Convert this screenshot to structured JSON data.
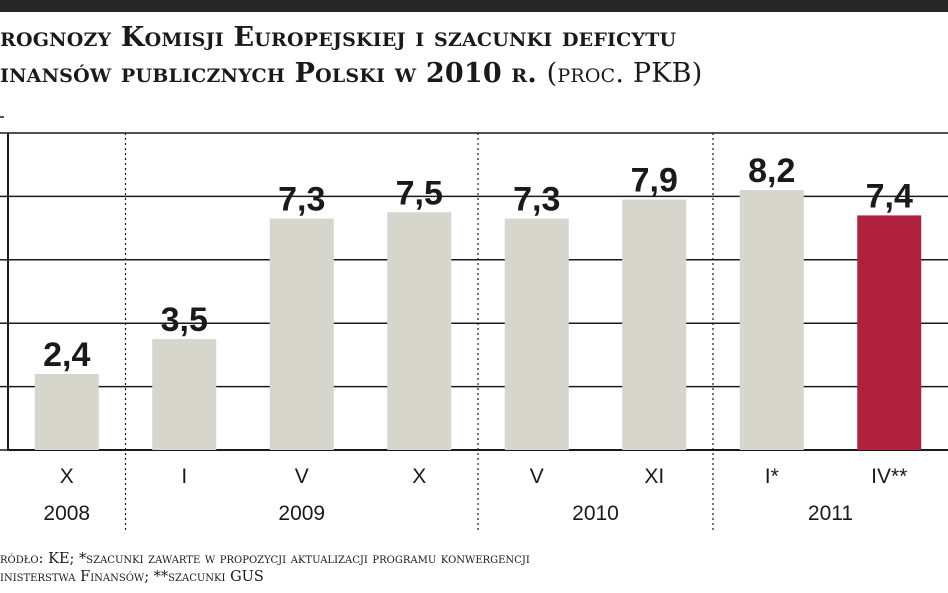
{
  "title": {
    "line1": "rognozy Komisji Europejskiej i szacunki deficytu",
    "line2": "inansów publicznych Polski w 2010 r.",
    "unit": "(proc. PKB)"
  },
  "source": {
    "line1": "ródło: KE; *szacunki zawarte w propozycji aktualizacji programu konwergencji",
    "line2": "inisterstwa Finansów; **szacunki GUS"
  },
  "colors": {
    "bar": "#d7d6cc",
    "highlight": "#b0213f",
    "grid": "#1a1a1a",
    "text": "#1a1a1a"
  },
  "chart_data": {
    "type": "bar",
    "categories": [
      "X",
      "I",
      "V",
      "X",
      "V",
      "XI",
      "I*",
      "IV**"
    ],
    "values": [
      2.4,
      3.5,
      7.3,
      7.5,
      7.3,
      7.9,
      8.2,
      7.4
    ],
    "data_labels": [
      "2,4",
      "3,5",
      "7,3",
      "7,5",
      "7,3",
      "7,9",
      "8,2",
      "7,4"
    ],
    "highlight_index": 7,
    "year_groups": [
      {
        "label": "2008",
        "categories": [
          0
        ]
      },
      {
        "label": "2009",
        "categories": [
          1,
          2,
          3
        ]
      },
      {
        "label": "2010",
        "categories": [
          4,
          5
        ]
      },
      {
        "label": "2011",
        "categories": [
          6,
          7
        ]
      }
    ],
    "ylim": [
      0,
      10
    ],
    "grid": true,
    "yticks": [
      0,
      2,
      4,
      6,
      8,
      10
    ],
    "title": "",
    "xlabel": "",
    "ylabel": ""
  }
}
